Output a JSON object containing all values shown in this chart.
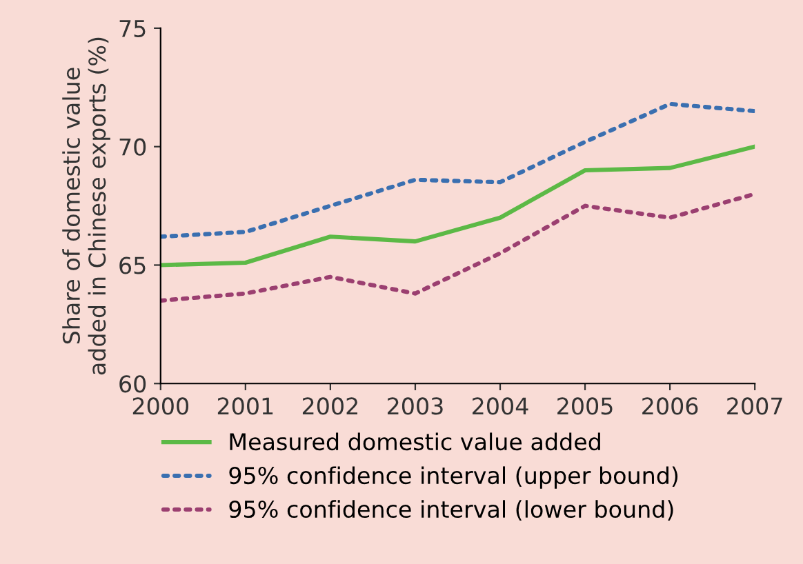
{
  "chart_data": {
    "type": "line",
    "ylabel": "Share of domestic value\nadded in Chinese exports (%)",
    "categories": [
      "2000",
      "2001",
      "2002",
      "2003",
      "2004",
      "2005",
      "2006",
      "2007"
    ],
    "series": [
      {
        "name": "Measured domestic value added",
        "color": "#5cb946",
        "line_style": "solid",
        "values": [
          65.0,
          65.1,
          66.2,
          66.0,
          67.0,
          69.0,
          69.1,
          70.0
        ]
      },
      {
        "name": "95% confidence interval (upper bound)",
        "color": "#3a6fb0",
        "line_style": "dotted",
        "values": [
          66.2,
          66.4,
          67.5,
          68.6,
          68.5,
          70.2,
          71.8,
          71.5
        ]
      },
      {
        "name": "95% confidence interval (lower bound)",
        "color": "#9b3f70",
        "line_style": "dotted",
        "values": [
          63.5,
          63.8,
          64.5,
          63.8,
          65.5,
          67.5,
          67.0,
          68.0
        ]
      }
    ],
    "ylim": [
      60,
      75
    ],
    "yticks": [
      60,
      65,
      70,
      75
    ],
    "grid": false,
    "legend": "bottom",
    "marker": "none"
  }
}
